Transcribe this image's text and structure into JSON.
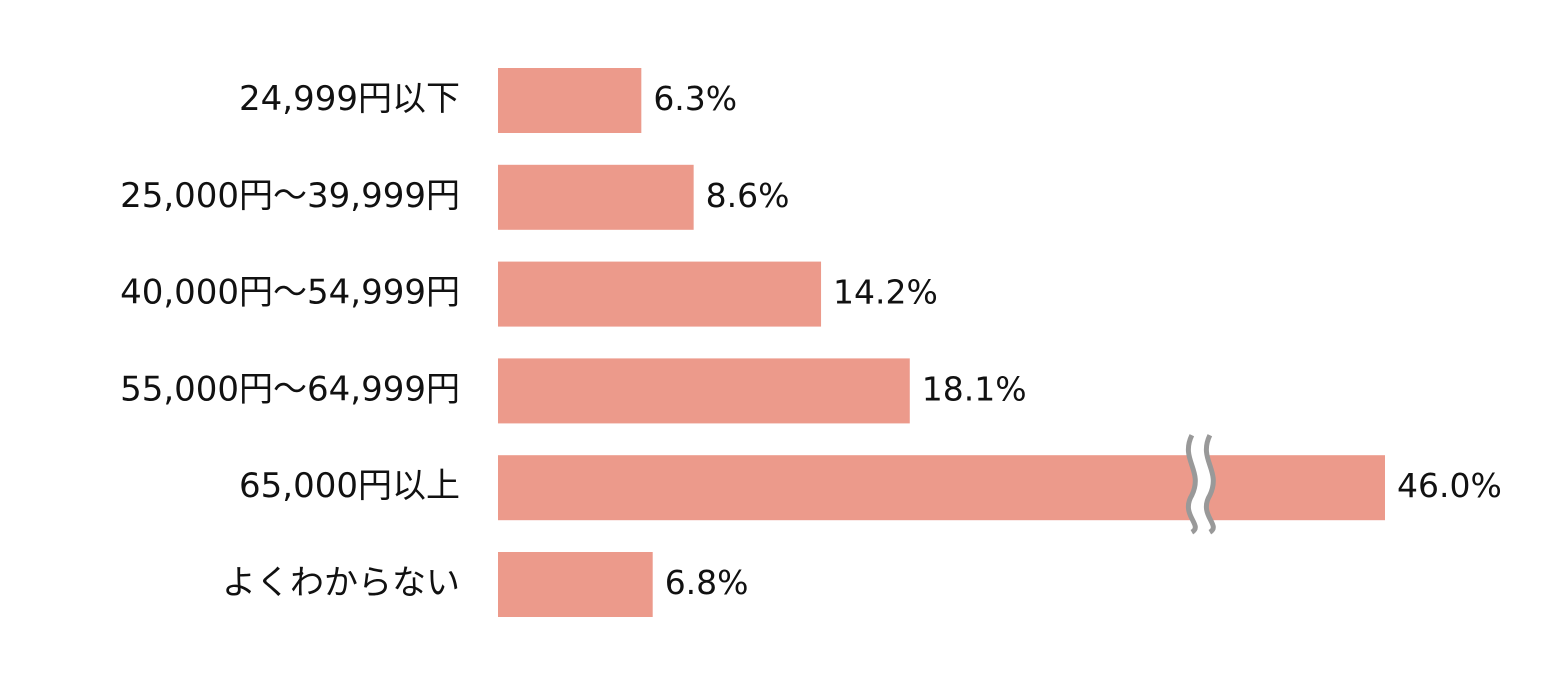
{
  "chart_data": {
    "type": "bar",
    "orientation": "horizontal",
    "categories": [
      "24,999円以下",
      "25,000円〜39,999円",
      "40,000円〜54,999円",
      "55,000円〜64,999円",
      "65,000円以上",
      "よくわからない"
    ],
    "values": [
      6.3,
      8.6,
      14.2,
      18.1,
      46.0,
      6.8
    ],
    "value_labels": [
      "6.3%",
      "8.6%",
      "14.2%",
      "18.1%",
      "46.0%",
      "6.8%"
    ],
    "color": "#ec9a8b"
  }
}
